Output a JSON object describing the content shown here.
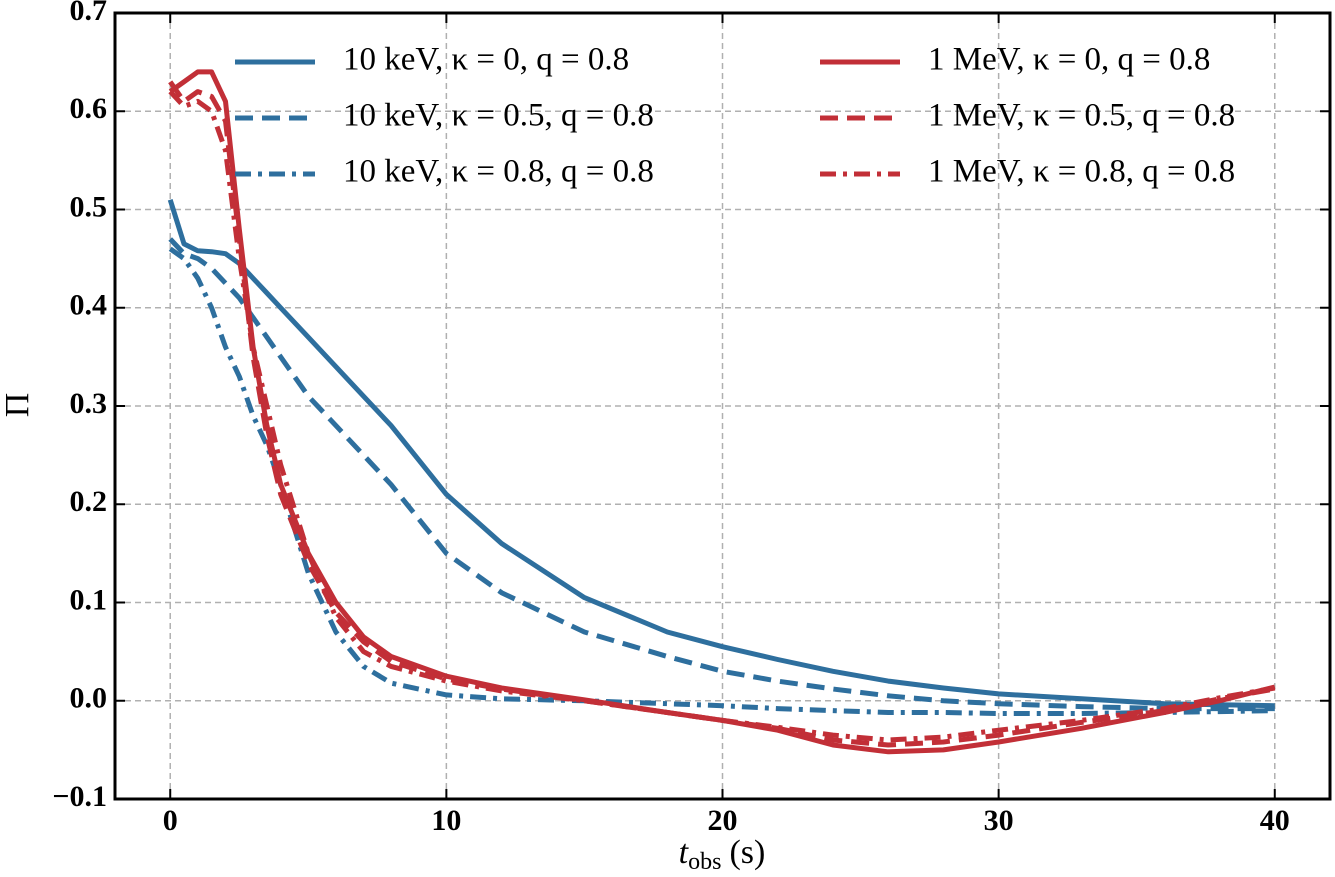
{
  "chart_data": {
    "type": "line",
    "x_label": "t",
    "x_label_sub": "obs",
    "x_label_unit": "(s)",
    "y_label": "Π",
    "x": [
      0,
      0.5,
      1,
      1.5,
      2,
      2.5,
      3,
      3.5,
      4,
      5,
      6,
      7,
      8,
      10,
      12,
      15,
      18,
      20,
      22,
      24,
      26,
      28,
      30,
      33,
      36,
      38,
      40
    ],
    "series": [
      {
        "name": "10 keV, κ = 0, q = 0.8",
        "color": "#2e6f9e",
        "style": "solid",
        "values": [
          0.51,
          0.465,
          0.458,
          0.457,
          0.455,
          0.445,
          0.43,
          0.415,
          0.4,
          0.37,
          0.34,
          0.31,
          0.28,
          0.21,
          0.16,
          0.105,
          0.07,
          0.055,
          0.042,
          0.03,
          0.02,
          0.013,
          0.007,
          0.002,
          -0.003,
          -0.004,
          -0.005
        ]
      },
      {
        "name": "10 keV, κ = 0.5, q = 0.8",
        "color": "#2e6f9e",
        "style": "dashed",
        "values": [
          0.47,
          0.455,
          0.45,
          0.44,
          0.425,
          0.41,
          0.39,
          0.37,
          0.35,
          0.31,
          0.28,
          0.25,
          0.22,
          0.15,
          0.11,
          0.07,
          0.045,
          0.03,
          0.02,
          0.012,
          0.005,
          0,
          -0.003,
          -0.006,
          -0.008,
          -0.008,
          -0.008
        ]
      },
      {
        "name": "10 keV, κ = 0.8, q = 0.8",
        "color": "#2e6f9e",
        "style": "dashdot",
        "values": [
          0.46,
          0.45,
          0.43,
          0.4,
          0.36,
          0.33,
          0.29,
          0.26,
          0.22,
          0.13,
          0.07,
          0.035,
          0.018,
          0.006,
          0.002,
          0,
          -0.003,
          -0.005,
          -0.008,
          -0.01,
          -0.012,
          -0.012,
          -0.013,
          -0.013,
          -0.012,
          -0.011,
          -0.01
        ]
      },
      {
        "name": "1 MeV, κ = 0, q = 0.8",
        "color": "#c22f37",
        "style": "solid",
        "values": [
          0.62,
          0.63,
          0.64,
          0.64,
          0.61,
          0.48,
          0.36,
          0.28,
          0.22,
          0.15,
          0.1,
          0.065,
          0.045,
          0.025,
          0.013,
          0.001,
          -0.012,
          -0.02,
          -0.03,
          -0.045,
          -0.052,
          -0.05,
          -0.042,
          -0.028,
          -0.012,
          0,
          0.014
        ]
      },
      {
        "name": "1 MeV, κ = 0.5, q = 0.8",
        "color": "#c22f37",
        "style": "dashed",
        "values": [
          0.63,
          0.61,
          0.62,
          0.615,
          0.59,
          0.47,
          0.35,
          0.27,
          0.21,
          0.14,
          0.09,
          0.06,
          0.04,
          0.022,
          0.012,
          0,
          -0.012,
          -0.02,
          -0.028,
          -0.04,
          -0.045,
          -0.042,
          -0.035,
          -0.022,
          -0.01,
          0.002,
          0.012
        ]
      },
      {
        "name": "1 MeV, κ = 0.8, q = 0.8",
        "color": "#c22f37",
        "style": "dashdot",
        "values": [
          0.62,
          0.605,
          0.61,
          0.6,
          0.56,
          0.45,
          0.36,
          0.3,
          0.24,
          0.15,
          0.085,
          0.05,
          0.035,
          0.02,
          0.01,
          0,
          -0.012,
          -0.02,
          -0.027,
          -0.035,
          -0.04,
          -0.037,
          -0.03,
          -0.02,
          -0.008,
          0.003,
          0.013
        ]
      }
    ],
    "xlim": [
      -2,
      42
    ],
    "ylim": [
      -0.1,
      0.7
    ],
    "xticks": [
      0,
      10,
      20,
      30,
      40
    ],
    "yticks": [
      {
        "value": -0.1,
        "label": "−0.1"
      },
      {
        "value": 0,
        "label": "0.0"
      },
      0.1,
      0.2,
      0.3,
      0.4,
      0.5,
      0.6,
      0.7
    ],
    "grid": true,
    "legend": "top",
    "legend_columns": 2
  }
}
